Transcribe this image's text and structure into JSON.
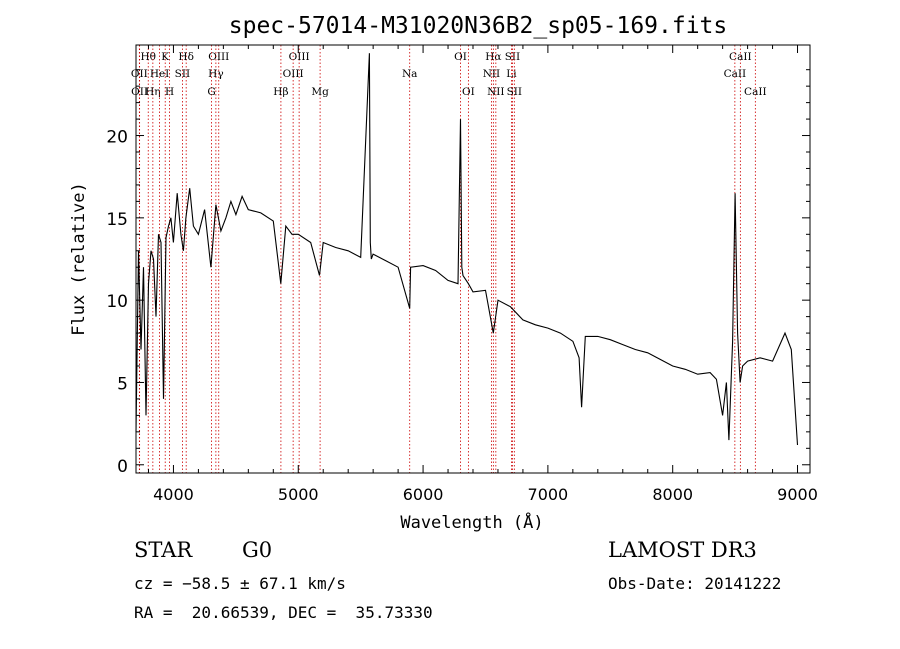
{
  "chart_data": {
    "type": "line",
    "title": "spec-57014-M31020N36B2_sp05-169.fits",
    "xlabel": "Wavelength (Å)",
    "ylabel": "Flux (relative)",
    "xlim": [
      3700,
      9100
    ],
    "ylim": [
      -0.5,
      25.5
    ],
    "x_ticks": [
      4000,
      5000,
      6000,
      7000,
      8000,
      9000
    ],
    "y_ticks": [
      0,
      5,
      10,
      15,
      20
    ],
    "series": [
      {
        "name": "flux",
        "x": [
          3700,
          3720,
          3740,
          3760,
          3780,
          3800,
          3820,
          3840,
          3860,
          3880,
          3900,
          3920,
          3940,
          3960,
          3980,
          4000,
          4030,
          4060,
          4080,
          4100,
          4130,
          4160,
          4200,
          4250,
          4300,
          4340,
          4380,
          4420,
          4460,
          4500,
          4550,
          4600,
          4700,
          4800,
          4860,
          4900,
          4950,
          5000,
          5100,
          5170,
          5200,
          5300,
          5400,
          5500,
          5570,
          5577,
          5585,
          5600,
          5700,
          5800,
          5893,
          5900,
          6000,
          6100,
          6200,
          6280,
          6300,
          6310,
          6320,
          6363,
          6400,
          6500,
          6563,
          6600,
          6700,
          6800,
          6900,
          7000,
          7100,
          7200,
          7250,
          7270,
          7300,
          7400,
          7500,
          7600,
          7700,
          7800,
          7900,
          8000,
          8100,
          8200,
          8300,
          8350,
          8400,
          8430,
          8450,
          8480,
          8500,
          8520,
          8540,
          8560,
          8600,
          8700,
          8800,
          8900,
          8950,
          9000
        ],
        "y": [
          2.0,
          13.0,
          7.0,
          12.0,
          3.0,
          11.0,
          13.0,
          12.5,
          9.0,
          14.0,
          13.5,
          4.0,
          13.8,
          14.5,
          15.0,
          13.5,
          16.5,
          14.0,
          13.0,
          15.0,
          16.8,
          14.5,
          14.0,
          15.5,
          12.0,
          15.8,
          14.2,
          15.0,
          16.0,
          15.2,
          16.3,
          15.5,
          15.3,
          14.8,
          11.0,
          14.5,
          14.0,
          14.0,
          13.5,
          11.5,
          13.5,
          13.2,
          13.0,
          12.6,
          25.0,
          13.5,
          12.5,
          12.8,
          12.4,
          12.0,
          9.5,
          12.0,
          12.1,
          11.8,
          11.2,
          11.0,
          21.0,
          12.0,
          11.5,
          11.0,
          10.5,
          10.6,
          8.0,
          10.0,
          9.6,
          8.8,
          8.5,
          8.3,
          8.0,
          7.5,
          6.5,
          3.5,
          7.8,
          7.8,
          7.6,
          7.3,
          7.0,
          6.8,
          6.4,
          6.0,
          5.8,
          5.5,
          5.6,
          5.2,
          3.0,
          5.0,
          1.5,
          7.5,
          16.5,
          8.0,
          5.0,
          6.0,
          6.3,
          6.5,
          6.3,
          8.0,
          7.0,
          1.2
        ]
      }
    ],
    "line_markers": [
      {
        "label": "Hθ",
        "x": 3798,
        "row": 0
      },
      {
        "label": "OII",
        "x": 3727,
        "row": 1
      },
      {
        "label": "OII",
        "x": 3729,
        "row": 2
      },
      {
        "label": "Hη",
        "x": 3835,
        "row": 2
      },
      {
        "label": "K",
        "x": 3934,
        "row": 0
      },
      {
        "label": "HeI",
        "x": 3889,
        "row": 1
      },
      {
        "label": "SII",
        "x": 4072,
        "row": 1
      },
      {
        "label": "H",
        "x": 3969,
        "row": 2
      },
      {
        "label": "Hδ",
        "x": 4102,
        "row": 0
      },
      {
        "label": "OIII",
        "x": 4363,
        "row": 0
      },
      {
        "label": "Hγ",
        "x": 4340,
        "row": 1
      },
      {
        "label": "G",
        "x": 4305,
        "row": 2
      },
      {
        "label": "OIII",
        "x": 5007,
        "row": 0
      },
      {
        "label": "OIII",
        "x": 4959,
        "row": 1
      },
      {
        "label": "Hβ",
        "x": 4861,
        "row": 2
      },
      {
        "label": "Mg",
        "x": 5175,
        "row": 2
      },
      {
        "label": "Na",
        "x": 5893,
        "row": 1
      },
      {
        "label": "OI",
        "x": 6300,
        "row": 0
      },
      {
        "label": "OI",
        "x": 6363,
        "row": 2
      },
      {
        "label": "Hα",
        "x": 6563,
        "row": 0
      },
      {
        "label": "SII",
        "x": 6716,
        "row": 0
      },
      {
        "label": "NII",
        "x": 6548,
        "row": 1
      },
      {
        "label": "Li",
        "x": 6708,
        "row": 1
      },
      {
        "label": "NII",
        "x": 6583,
        "row": 2
      },
      {
        "label": "SII",
        "x": 6731,
        "row": 2
      },
      {
        "label": "CaII",
        "x": 8542,
        "row": 0
      },
      {
        "label": "CaII",
        "x": 8498,
        "row": 1
      },
      {
        "label": "CaII",
        "x": 8662,
        "row": 2
      }
    ],
    "grid": false,
    "legend": "none"
  },
  "info": {
    "class": "STAR",
    "subclass": "G0",
    "survey": "LAMOST DR3",
    "cz": "cz = −58.5 ± 67.1 km/s",
    "obs_date": "Obs-Date: 20141222",
    "radec": "RA =  20.66539, DEC =  35.73330"
  },
  "colors": {
    "line": "#000000",
    "marker": "#cc0000",
    "axis": "#000000"
  }
}
